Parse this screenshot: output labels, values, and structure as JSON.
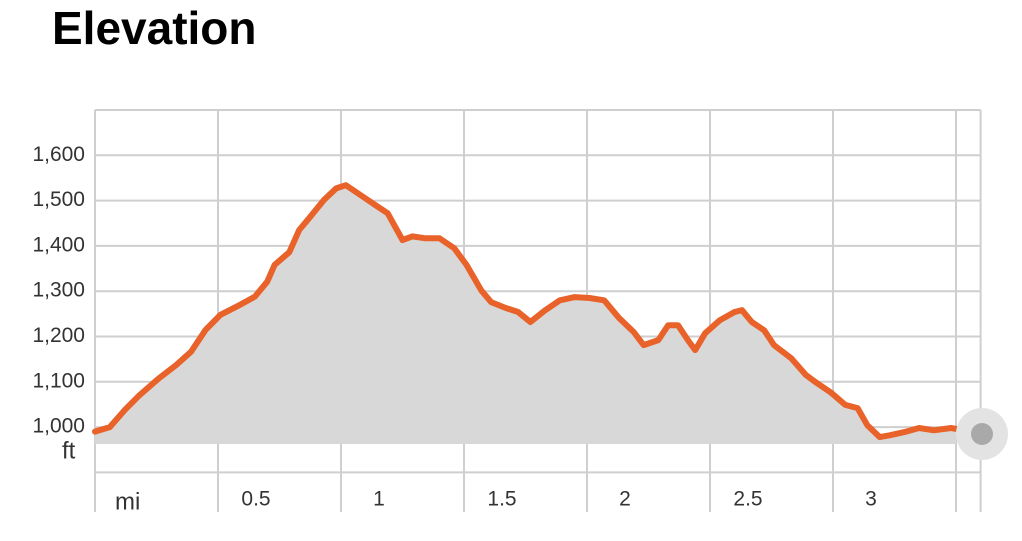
{
  "chart_data": {
    "type": "area",
    "title": "Elevation",
    "xlabel": "mi",
    "ylabel": "ft",
    "line_color": "#e8622a",
    "fill_color": "#d8d8d8",
    "grid": true,
    "xlim": [
      0,
      3.6
    ],
    "ylim": [
      900,
      1700
    ],
    "xticks": [
      {
        "value": 0,
        "label": null
      },
      0.5,
      1.0,
      1.5,
      2.0,
      2.5,
      3.0,
      {
        "value": 3.5,
        "label": null
      }
    ],
    "yticks": [
      {
        "value": 900,
        "label": null
      },
      {
        "value": 1000,
        "label": "1,000"
      },
      {
        "value": 1100,
        "label": "1,100"
      },
      {
        "value": 1200,
        "label": "1,200"
      },
      {
        "value": 1300,
        "label": "1,300"
      },
      {
        "value": 1400,
        "label": "1,400"
      },
      {
        "value": 1500,
        "label": "1,500"
      },
      {
        "value": 1600,
        "label": "1,600"
      },
      {
        "value": 1700,
        "label": null
      }
    ],
    "x": [
      0,
      0.06,
      0.12,
      0.18,
      0.26,
      0.33,
      0.39,
      0.45,
      0.51,
      0.59,
      0.65,
      0.7,
      0.73,
      0.79,
      0.83,
      0.87,
      0.93,
      0.98,
      1.02,
      1.08,
      1.14,
      1.19,
      1.25,
      1.29,
      1.34,
      1.4,
      1.46,
      1.51,
      1.57,
      1.61,
      1.67,
      1.72,
      1.77,
      1.83,
      1.89,
      1.95,
      2.01,
      2.07,
      2.13,
      2.19,
      2.23,
      2.29,
      2.33,
      2.37,
      2.41,
      2.44,
      2.48,
      2.54,
      2.6,
      2.63,
      2.67,
      2.72,
      2.76,
      2.83,
      2.89,
      2.93,
      2.99,
      3.05,
      3.1,
      3.14,
      3.19,
      3.23,
      3.29,
      3.35,
      3.41,
      3.48,
      3.5
    ],
    "values": [
      990,
      1000,
      1037,
      1070,
      1108,
      1137,
      1166,
      1215,
      1248,
      1270,
      1288,
      1321,
      1358,
      1386,
      1435,
      1461,
      1501,
      1527,
      1534,
      1512,
      1490,
      1472,
      1413,
      1421,
      1417,
      1417,
      1395,
      1358,
      1302,
      1276,
      1263,
      1254,
      1232,
      1258,
      1280,
      1287,
      1285,
      1280,
      1241,
      1210,
      1181,
      1192,
      1225,
      1225,
      1192,
      1170,
      1207,
      1236,
      1254,
      1258,
      1232,
      1214,
      1181,
      1152,
      1115,
      1099,
      1077,
      1049,
      1042,
      1004,
      978,
      982,
      989,
      998,
      993,
      998,
      996
    ]
  }
}
